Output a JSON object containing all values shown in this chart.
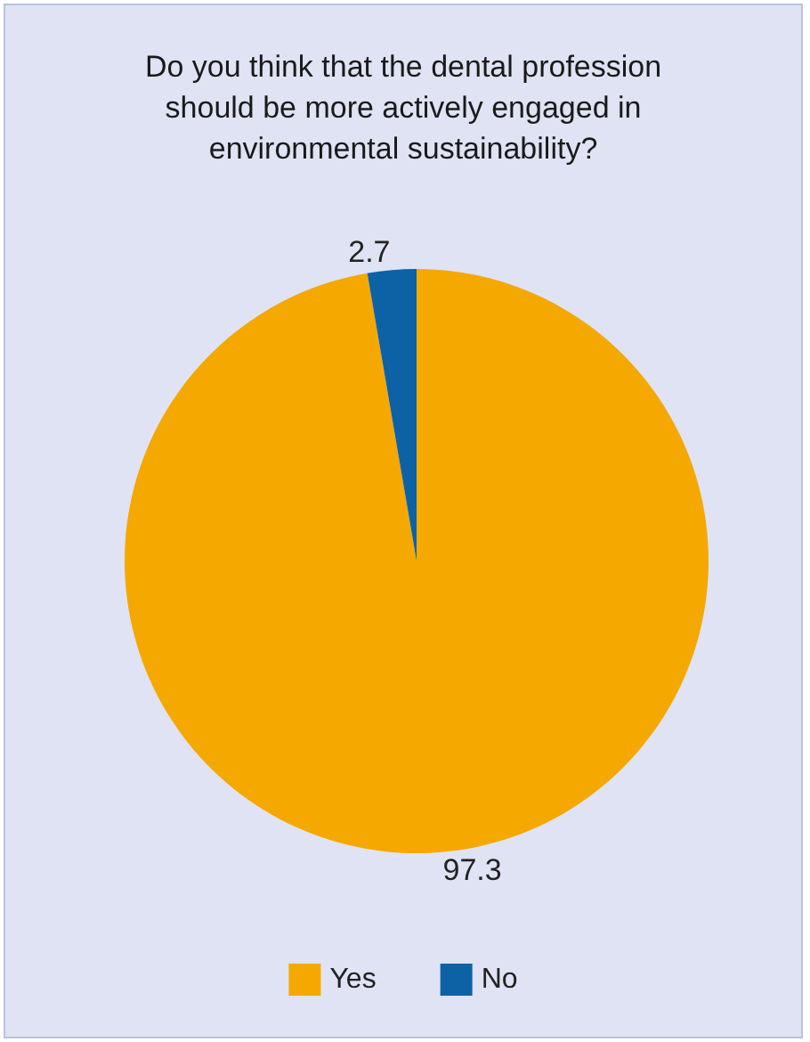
{
  "chart_data": {
    "type": "pie",
    "title": "Do you think that the dental profession\nshould be more actively engaged in\nenvironmental sustainability?",
    "categories": [
      "Yes",
      "No"
    ],
    "values": [
      97.3,
      2.7
    ],
    "colors": [
      "#f5a800",
      "#0d62a6"
    ],
    "data_labels": true,
    "legend": "bottom"
  }
}
